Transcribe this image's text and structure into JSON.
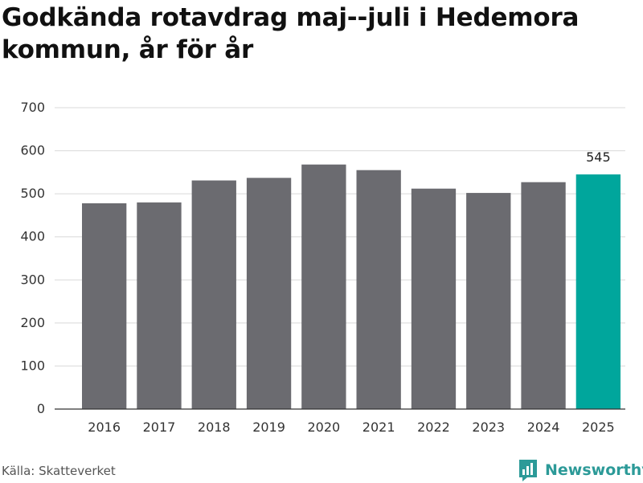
{
  "title": "Godkända rotavdrag maj--juli i Hedemora kommun, år för år",
  "source": "Källa: Skatteverket",
  "brand": "Newsworthy",
  "colors": {
    "bar": "#6b6b70",
    "highlight": "#00a69c",
    "grid": "#d9d9d9",
    "brand": "#2c9a98"
  },
  "chart_data": {
    "type": "bar",
    "categories": [
      "2016",
      "2017",
      "2018",
      "2019",
      "2020",
      "2021",
      "2022",
      "2023",
      "2024",
      "2025"
    ],
    "values": [
      478,
      480,
      531,
      537,
      568,
      555,
      512,
      502,
      527,
      545
    ],
    "highlight_index": 9,
    "data_labels": [
      {
        "index": 9,
        "text": "545"
      }
    ],
    "ylim": [
      0,
      700
    ],
    "yticks": [
      0,
      100,
      200,
      300,
      400,
      500,
      600,
      700
    ],
    "title": "Godkända rotavdrag maj--juli i Hedemora kommun, år för år",
    "xlabel": "",
    "ylabel": "",
    "grid": true
  }
}
